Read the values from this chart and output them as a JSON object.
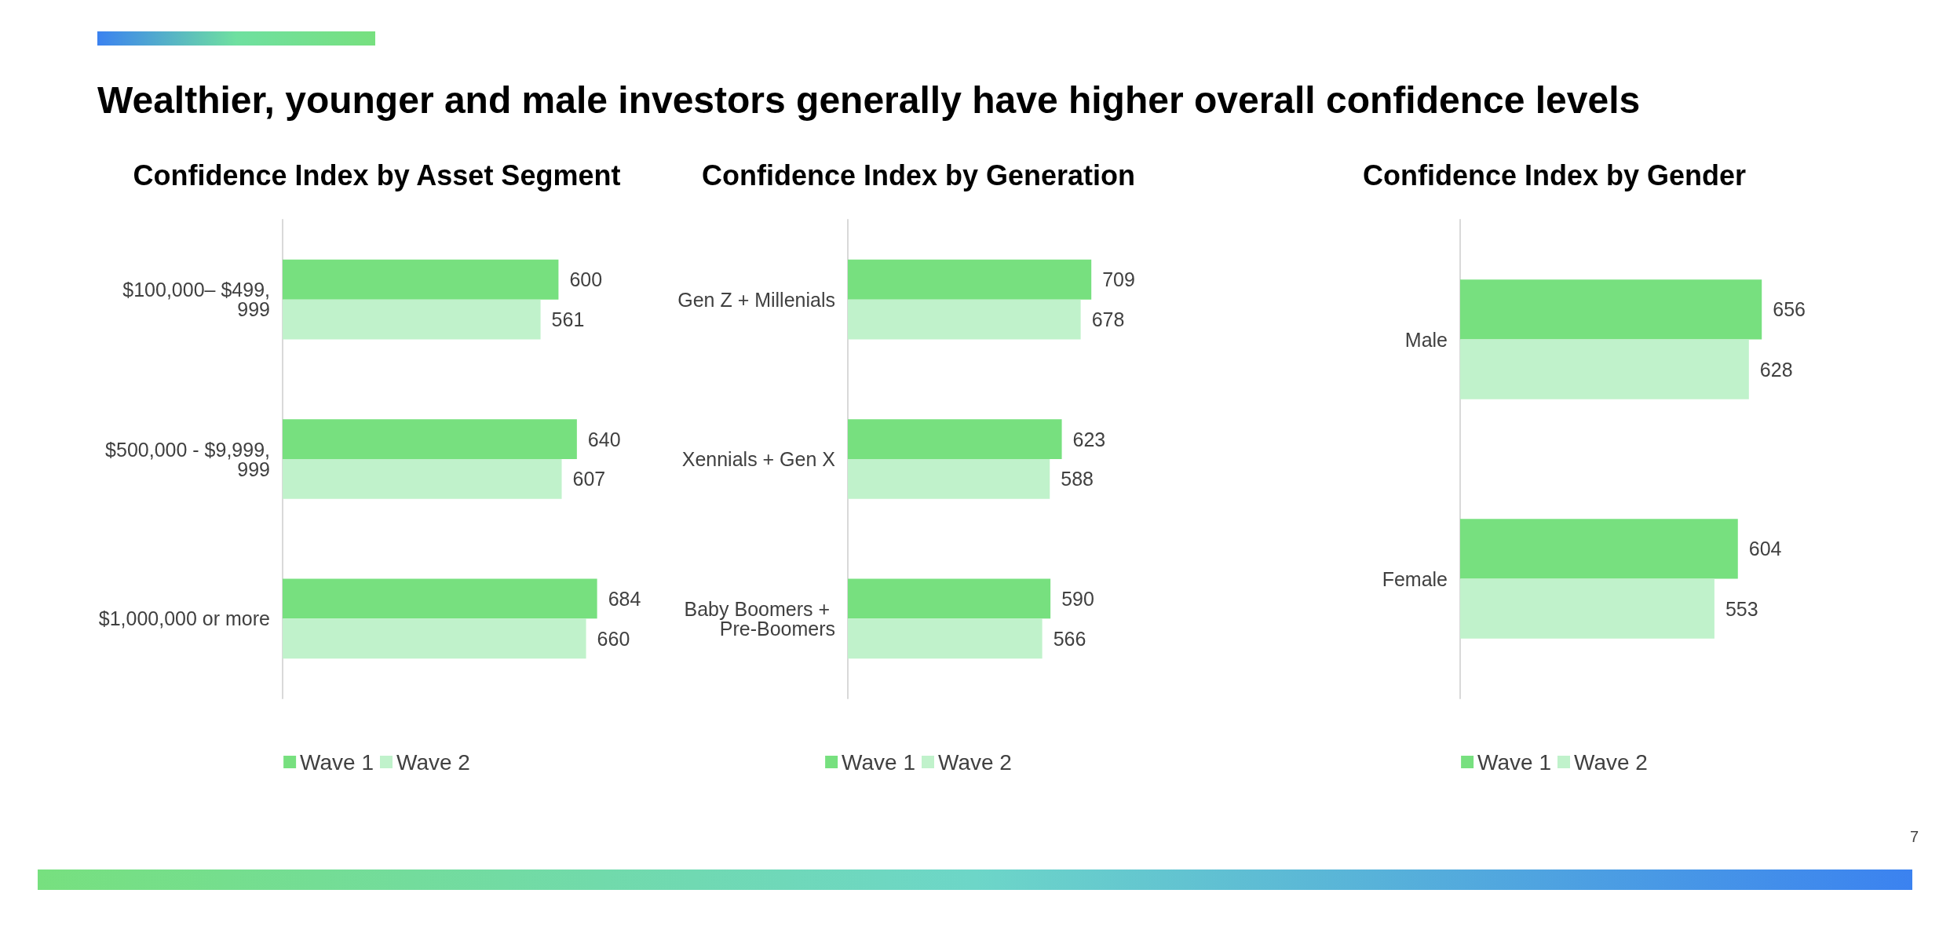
{
  "chart_data": [
    {
      "type": "other",
      "title": "Wealthier, younger and male investors generally have higher overall confidence levels",
      "annotations": [
        "7"
      ]
    },
    {
      "type": "bar",
      "orientation": "horizontal",
      "title": "Confidence Index by Asset Segment",
      "categories": [
        "$100,000– $499,999",
        "$500,000 - $9,999,999",
        "$1,000,000 or more"
      ],
      "series": [
        {
          "name": "Wave 1",
          "color": "#77e07f",
          "values": [
            600,
            640,
            684
          ]
        },
        {
          "name": "Wave 2",
          "color": "#c0f2cb",
          "values": [
            561,
            607,
            660
          ]
        }
      ],
      "tick_labels": "y",
      "data_labels": true,
      "legend": "bottom",
      "grid": false
    },
    {
      "type": "bar",
      "orientation": "horizontal",
      "title": "Confidence Index by Generation",
      "categories": [
        "Gen Z + Millenials",
        "Xennials + Gen X",
        "Baby Boomers + Pre-Boomers"
      ],
      "series": [
        {
          "name": "Wave 1",
          "color": "#77e07f",
          "values": [
            709,
            623,
            590
          ]
        },
        {
          "name": "Wave 2",
          "color": "#c0f2cb",
          "values": [
            678,
            588,
            566
          ]
        }
      ],
      "tick_labels": "y",
      "data_labels": true,
      "legend": "bottom",
      "grid": false
    },
    {
      "type": "bar",
      "orientation": "horizontal",
      "title": "Confidence Index by Gender",
      "categories": [
        "Male",
        "Female"
      ],
      "series": [
        {
          "name": "Wave 1",
          "color": "#77e07f",
          "values": [
            656,
            604
          ]
        },
        {
          "name": "Wave 2",
          "color": "#c0f2cb",
          "values": [
            628,
            553
          ]
        }
      ],
      "tick_labels": "y",
      "data_labels": true,
      "legend": "bottom",
      "grid": false
    }
  ]
}
